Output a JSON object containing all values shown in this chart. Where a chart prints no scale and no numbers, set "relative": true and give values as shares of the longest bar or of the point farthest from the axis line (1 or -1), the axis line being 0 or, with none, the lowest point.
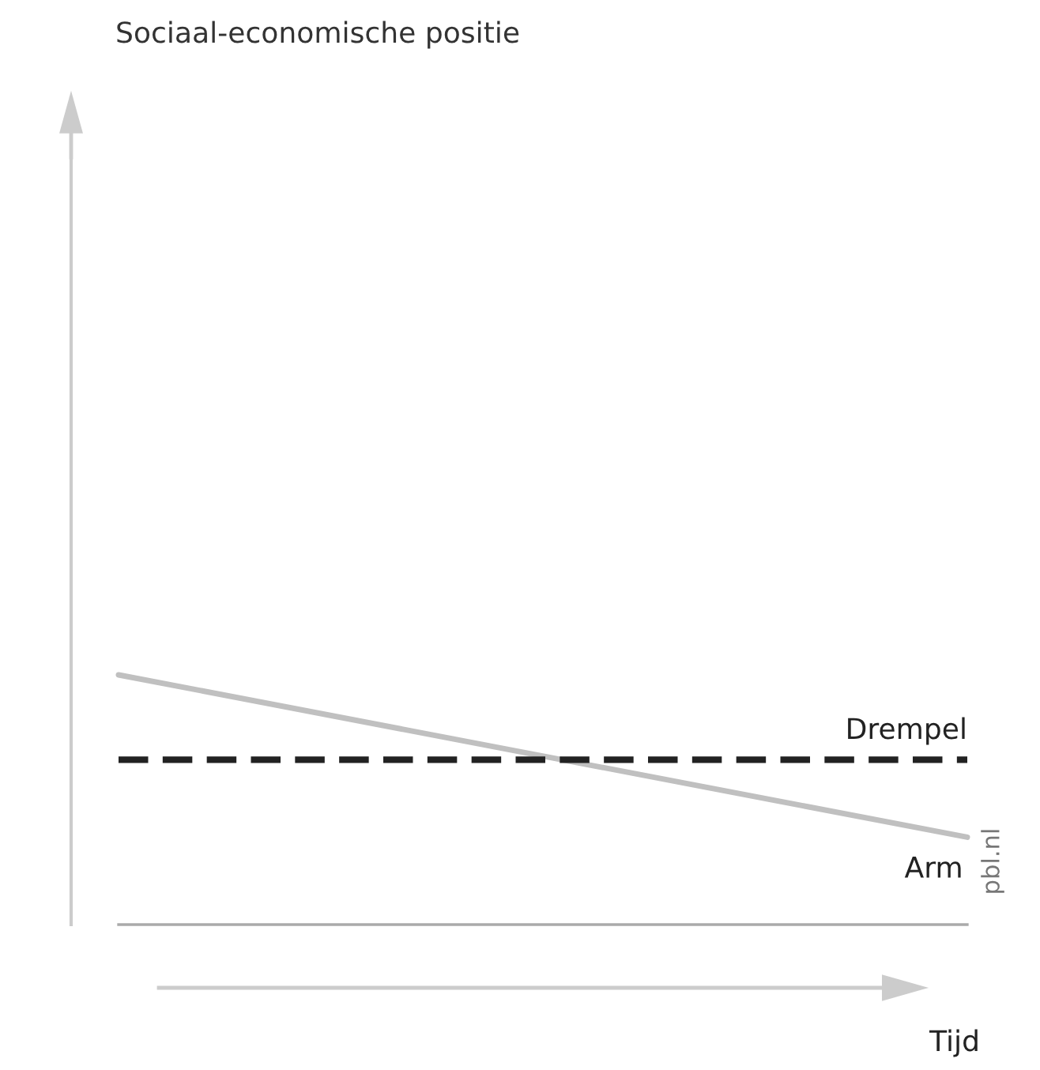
{
  "chart_data": {
    "type": "line",
    "relative": true,
    "xlabel": "Tijd",
    "categories": [
      null,
      null
    ],
    "series": [
      {
        "color": "#c0c0c0",
        "values": [
          1,
          0.35
        ]
      },
      {
        "name": "Drempel",
        "color": "#222222",
        "values": [
          0.66,
          0.66
        ],
        "line_style": "dashed"
      }
    ],
    "annotations": [
      "Arm",
      "pbl.nl",
      "Sociaal-economische positie"
    ],
    "marker": "none",
    "legend": false
  }
}
